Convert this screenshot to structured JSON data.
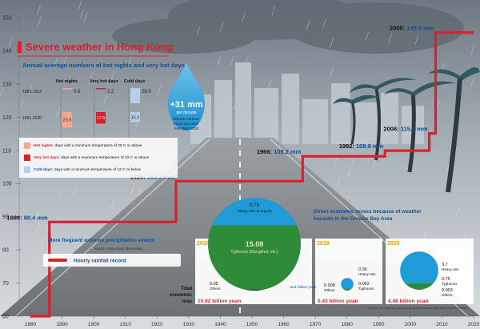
{
  "title": "Severe weather in Hong Kong",
  "chart_data": [
    {
      "type": "line",
      "subject": "Hourly rainfall record",
      "legend": "Hourly rainfall record",
      "x": [
        1880,
        1886,
        1926,
        1966,
        1992,
        2006,
        2008,
        2020
      ],
      "y": [
        60,
        88.4,
        100.7,
        108.2,
        109.9,
        115.1,
        145.5,
        145.5
      ],
      "point_labels": [
        {
          "year_label": "1886:",
          "value_label": "88.4 mm",
          "year": 1886,
          "value": 88.4
        },
        {
          "year_label": "1926:",
          "value_label": "100.7 mm",
          "year": 1926,
          "value": 100.7
        },
        {
          "year_label": "1966:",
          "value_label": "108.2 mm",
          "year": 1966,
          "value": 108.2
        },
        {
          "year_label": "1992:",
          "value_label": "109.9 mm",
          "year": 1992,
          "value": 109.9
        },
        {
          "year_label": "2006:",
          "value_label": "115.1 mm",
          "year": 2006,
          "value": 115.1
        },
        {
          "year_label": "2008:",
          "value_label": "145.5 mm",
          "year": 2008,
          "value": 145.5
        }
      ],
      "xlim": [
        1880,
        2020
      ],
      "ylim": [
        60,
        150
      ],
      "x_ticks": [
        "1880",
        "1890",
        "1900",
        "1910",
        "1920",
        "1930",
        "1940",
        "1950",
        "1960",
        "1970",
        "1980",
        "1990",
        "2000",
        "2010",
        "2020"
      ],
      "y_ticks": [
        "60",
        "70",
        "80",
        "90",
        "100",
        "110",
        "120",
        "130",
        "140",
        "150"
      ],
      "annotation_title": "More frequent extreme precipitation events",
      "source": "Source: Hong Kong Observatory",
      "line_color": "#d7212b"
    },
    {
      "type": "bar",
      "title": "Annual average numbers of hot nights and very hot days",
      "period_labels": [
        "1885-1914",
        "1991-2020"
      ],
      "categories": [
        "Hot nights",
        "Very hot days",
        "Cold days"
      ],
      "series": [
        {
          "name": "1885-1914",
          "values": [
            0.6,
            2.2,
            28.9
          ]
        },
        {
          "name": "1991-2020",
          "values": [
            23.6,
            17.5,
            15.2
          ]
        }
      ],
      "colors": [
        "#f5a98a",
        "#d7212b",
        "#b8cde8"
      ],
      "definitions": [
        {
          "term": "Hot nights:",
          "text": "days with a minimum temperature of 28 C or above"
        },
        {
          "term": "Very hot days:",
          "text": "days with a maximum temperature of 33 C or above"
        },
        {
          "term": "Cold days:",
          "text": "days with a minimum temperature of 12 C or below"
        }
      ]
    },
    {
      "type": "annotation",
      "value": "+31 mm",
      "unit": "per decade",
      "caption": "Victoria Harbour mean sea level rise 1954-2020"
    },
    {
      "type": "pie",
      "title": "Direct economic losses because of weather hazards in the Greater Bay Area",
      "row_label": "Total economic loss",
      "unit": "Unit: billion yuan",
      "source": "Source: Guangdong-Hong Kong-Macao Greater Bay Area Climate Bulletin",
      "panels": [
        {
          "year": "2018",
          "total": "15.92 billion yuan",
          "slices": [
            {
              "label": "Heavy rain on Aug 18",
              "value": 0.79
            },
            {
              "label": "Typhoons (Mangkhut, etc.)",
              "value": 15.08
            },
            {
              "label": "Others",
              "value": 0.05
            }
          ]
        },
        {
          "year": "2019",
          "total": "0.43 billion yuan",
          "slices": [
            {
              "label": "Heavy rain",
              "value": 0.36
            },
            {
              "label": "Typhoons",
              "value": 0.062
            },
            {
              "label": "Others",
              "value": 0.008
            }
          ]
        },
        {
          "year": "2020",
          "total": "4.48 billion yuan",
          "slices": [
            {
              "label": "Heavy rain",
              "value": 3.7
            },
            {
              "label": "Typhoons",
              "value": 0.75
            },
            {
              "label": "Others",
              "value": 0.003
            }
          ]
        }
      ],
      "colors": {
        "rain": "#1f9bd7",
        "typhoon": "#2e8b3a",
        "others": "#222222"
      }
    }
  ]
}
